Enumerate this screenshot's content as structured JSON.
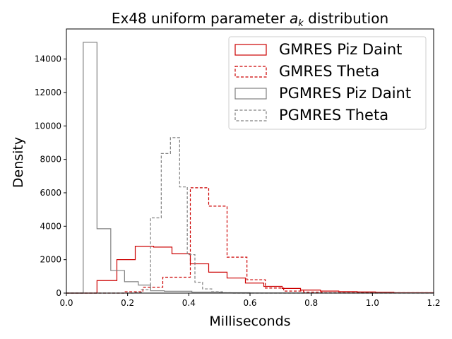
{
  "chart_data": {
    "type": "histogram",
    "title": "Ex48 uniform parameter a_k distribution",
    "title_parts": {
      "prefix": "Ex48 uniform parameter ",
      "var": "a",
      "sub": "k",
      "suffix": " distribution"
    },
    "xlabel": "Milliseconds",
    "ylabel": "Density",
    "xlim": [
      0.0,
      1.2
    ],
    "ylim": [
      0,
      15800
    ],
    "xticks": [
      0.0,
      0.2,
      0.4,
      0.6,
      0.8,
      1.0,
      1.2
    ],
    "xtick_labels": [
      "0.0",
      "0.2",
      "0.4",
      "0.6",
      "0.8",
      "1.0",
      "1.2"
    ],
    "yticks": [
      0,
      2000,
      4000,
      6000,
      8000,
      10000,
      12000,
      14000
    ],
    "ytick_labels": [
      "0",
      "2000",
      "4000",
      "6000",
      "8000",
      "10000",
      "12000",
      "14000"
    ],
    "grid": false,
    "legend_position": "top-right",
    "series": [
      {
        "name": "GMRES Piz Daint",
        "color": "#cc0000",
        "linestyle": "solid",
        "edges": [
          0.0,
          0.1,
          0.165,
          0.225,
          0.285,
          0.345,
          0.405,
          0.465,
          0.525,
          0.585,
          0.645,
          0.705,
          0.765,
          0.83,
          0.89,
          0.95,
          1.01,
          1.07,
          1.2
        ],
        "values": [
          0,
          750,
          2000,
          2800,
          2750,
          2350,
          1750,
          1250,
          900,
          600,
          400,
          280,
          180,
          120,
          90,
          70,
          50,
          20
        ]
      },
      {
        "name": "GMRES Theta",
        "color": "#cc0000",
        "linestyle": "dashed",
        "edges": [
          0.0,
          0.19,
          0.25,
          0.315,
          0.36,
          0.405,
          0.465,
          0.525,
          0.59,
          0.65,
          0.71,
          0.775,
          0.835,
          1.2
        ],
        "values": [
          0,
          80,
          350,
          950,
          950,
          6300,
          5200,
          2150,
          800,
          300,
          120,
          60,
          20
        ]
      },
      {
        "name": "PGMRES Piz Daint",
        "color": "#808080",
        "linestyle": "solid",
        "edges": [
          0.0,
          0.055,
          0.1,
          0.145,
          0.19,
          0.235,
          0.275,
          0.32,
          0.41,
          0.5,
          0.6,
          1.2
        ],
        "values": [
          0,
          15000,
          3850,
          1350,
          680,
          480,
          140,
          110,
          60,
          20,
          5
        ]
      },
      {
        "name": "PGMRES Theta",
        "color": "#808080",
        "linestyle": "dashed",
        "edges": [
          0.0,
          0.22,
          0.245,
          0.275,
          0.31,
          0.34,
          0.37,
          0.395,
          0.42,
          0.445,
          0.475,
          0.51,
          0.54,
          1.2
        ],
        "values": [
          0,
          30,
          200,
          4500,
          8350,
          9300,
          6350,
          2300,
          650,
          250,
          80,
          20,
          0
        ]
      }
    ]
  }
}
